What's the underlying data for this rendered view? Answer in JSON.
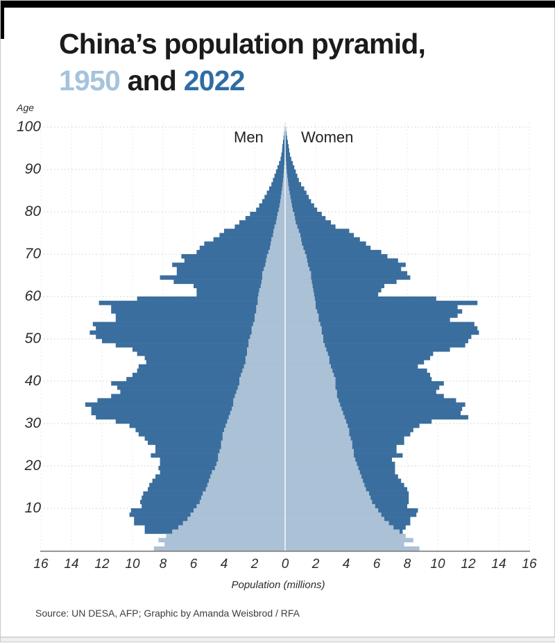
{
  "header": {
    "title_line1": "China’s population pyramid,",
    "year_old": "1950",
    "conjunction": "and",
    "year_new": "2022"
  },
  "labels": {
    "men": "Men",
    "women": "Women",
    "age_axis": "Age",
    "x_axis": "Population (millions)"
  },
  "source_line": "Source: UN DESA, AFP; Graphic by Amanda Weisbrod / RFA",
  "colors": {
    "bar_2022": "#3a6e9e",
    "bar_1950": "#abc1d6",
    "title_year_old": "#a5c3dc",
    "title_year_new": "#2e6da4",
    "grid_horizontal": "#c8c8c8",
    "grid_vertical": "#e4e4e4",
    "axis_line": "#7a7a7a",
    "center_divider": "#ffffff"
  },
  "chart_data": {
    "type": "bar",
    "subtype": "population_pyramid",
    "title": "China's population pyramid, 1950 and 2022",
    "xlabel": "Population (millions)",
    "ylabel": "Age",
    "left_label": "Men",
    "right_label": "Women",
    "x_tick_labels": [
      "16",
      "14",
      "12",
      "10",
      "8",
      "6",
      "4",
      "2",
      "0",
      "2",
      "4",
      "6",
      "8",
      "10",
      "12",
      "14",
      "16"
    ],
    "x_max_millions_each_side": 16,
    "age_tick_labels": [
      "100",
      "90",
      "80",
      "70",
      "60",
      "50",
      "40",
      "30",
      "20",
      "10"
    ],
    "age_ticks": [
      100,
      90,
      80,
      70,
      60,
      50,
      40,
      30,
      20,
      10
    ],
    "ages_min": 0,
    "ages_max": 100,
    "grid": true,
    "legend_position": "in-title",
    "years": [
      {
        "label": "1950",
        "color": "#abc1d6"
      },
      {
        "label": "2022",
        "color": "#3a6e9e"
      }
    ],
    "series": [
      {
        "name": "Men 2022",
        "year": "2022",
        "side": "left",
        "color": "#3a6e9e",
        "values": [
          4.8,
          5.2,
          6.0,
          7.6,
          9.2,
          9.2,
          9.9,
          9.9,
          10.2,
          10.1,
          9.4,
          9.5,
          9.4,
          9.3,
          9.0,
          8.9,
          8.7,
          8.5,
          8.2,
          8.3,
          8.2,
          8.2,
          8.8,
          8.5,
          8.5,
          9.0,
          9.2,
          9.6,
          9.8,
          10.2,
          11.1,
          12.4,
          12.7,
          12.7,
          13.1,
          12.3,
          11.4,
          10.8,
          11.0,
          11.4,
          10.4,
          10.0,
          9.7,
          9.6,
          9.1,
          9.2,
          9.7,
          10.0,
          11.1,
          12.0,
          12.4,
          12.8,
          12.4,
          12.6,
          11.1,
          11.1,
          11.4,
          11.4,
          12.2,
          9.7,
          5.8,
          5.8,
          6.0,
          7.3,
          8.2,
          7.1,
          7.1,
          7.4,
          6.6,
          6.8,
          5.8,
          5.6,
          5.3,
          4.7,
          4.3,
          4.0,
          3.3,
          3.0,
          2.6,
          2.3,
          1.9,
          1.7,
          1.5,
          1.35,
          1.2,
          1.05,
          0.9,
          0.8,
          0.7,
          0.6,
          0.5,
          0.4,
          0.3,
          0.25,
          0.2,
          0.18,
          0.14,
          0.1,
          0.07,
          0.05,
          0.03
        ]
      },
      {
        "name": "Women 2022",
        "year": "2022",
        "side": "right",
        "color": "#3a6e9e",
        "values": [
          4.4,
          4.8,
          5.5,
          7.3,
          7.7,
          7.9,
          8.2,
          8.2,
          8.6,
          8.7,
          8.0,
          8.1,
          8.1,
          8.1,
          8.0,
          7.8,
          7.6,
          7.4,
          7.2,
          7.2,
          7.2,
          7.0,
          7.7,
          7.3,
          7.3,
          7.8,
          7.8,
          8.2,
          8.4,
          8.8,
          9.6,
          12.0,
          11.5,
          11.6,
          11.8,
          11.2,
          10.4,
          9.9,
          10.1,
          10.4,
          9.6,
          9.5,
          9.3,
          8.7,
          9.1,
          9.5,
          9.7,
          10.8,
          11.8,
          12.0,
          12.2,
          12.7,
          12.6,
          12.4,
          10.8,
          11.3,
          11.6,
          11.3,
          12.6,
          9.9,
          6.1,
          6.3,
          6.5,
          7.3,
          8.2,
          8.0,
          7.6,
          7.9,
          7.4,
          6.7,
          6.3,
          5.6,
          5.3,
          4.9,
          4.5,
          4.2,
          3.3,
          3.0,
          2.65,
          2.4,
          2.1,
          1.9,
          1.7,
          1.55,
          1.4,
          1.25,
          1.05,
          0.9,
          0.8,
          0.7,
          0.6,
          0.5,
          0.4,
          0.32,
          0.27,
          0.23,
          0.18,
          0.13,
          0.09,
          0.06,
          0.04
        ]
      },
      {
        "name": "Men 1950",
        "year": "1950",
        "side": "left",
        "color": "#abc1d6",
        "values": [
          8.6,
          7.9,
          8.3,
          7.8,
          7.4,
          7.0,
          6.7,
          6.4,
          6.2,
          6.0,
          5.8,
          5.6,
          5.5,
          5.4,
          5.2,
          5.1,
          5.0,
          4.9,
          4.8,
          4.6,
          4.5,
          4.4,
          4.4,
          4.3,
          4.2,
          4.2,
          4.1,
          4.1,
          4.0,
          3.9,
          3.8,
          3.7,
          3.6,
          3.5,
          3.4,
          3.4,
          3.3,
          3.2,
          3.1,
          3.0,
          3.0,
          2.9,
          2.8,
          2.7,
          2.6,
          2.6,
          2.5,
          2.5,
          2.4,
          2.4,
          2.3,
          2.2,
          2.2,
          2.1,
          2.0,
          2.0,
          1.9,
          1.9,
          1.8,
          1.8,
          1.75,
          1.7,
          1.6,
          1.55,
          1.5,
          1.5,
          1.4,
          1.3,
          1.25,
          1.2,
          1.1,
          1.0,
          0.95,
          0.9,
          0.8,
          0.76,
          0.7,
          0.6,
          0.55,
          0.5,
          0.42,
          0.37,
          0.32,
          0.28,
          0.24,
          0.2,
          0.17,
          0.14,
          0.11,
          0.09,
          0.07,
          0.05,
          0.04,
          0.03,
          0.02,
          0.016,
          0.012,
          0.008,
          0.005,
          0.003,
          0.002
        ]
      },
      {
        "name": "Women 1950",
        "year": "1950",
        "side": "right",
        "color": "#abc1d6",
        "values": [
          8.8,
          7.8,
          8.4,
          7.9,
          7.5,
          7.1,
          6.8,
          6.5,
          6.3,
          6.1,
          5.9,
          5.7,
          5.6,
          5.5,
          5.3,
          5.2,
          5.1,
          5.0,
          4.9,
          4.8,
          4.7,
          4.6,
          4.5,
          4.5,
          4.4,
          4.4,
          4.3,
          4.2,
          4.2,
          4.1,
          4.0,
          3.9,
          3.8,
          3.7,
          3.6,
          3.5,
          3.4,
          3.4,
          3.3,
          3.3,
          3.3,
          3.2,
          3.1,
          3.0,
          2.9,
          2.9,
          2.8,
          2.7,
          2.6,
          2.5,
          2.5,
          2.4,
          2.4,
          2.3,
          2.2,
          2.2,
          2.1,
          2.0,
          2.0,
          1.95,
          1.9,
          1.85,
          1.8,
          1.75,
          1.7,
          1.7,
          1.6,
          1.5,
          1.45,
          1.4,
          1.3,
          1.2,
          1.1,
          1.05,
          1.0,
          0.9,
          0.8,
          0.7,
          0.65,
          0.6,
          0.5,
          0.45,
          0.4,
          0.35,
          0.3,
          0.25,
          0.21,
          0.18,
          0.14,
          0.11,
          0.09,
          0.07,
          0.05,
          0.04,
          0.032,
          0.025,
          0.018,
          0.012,
          0.008,
          0.005,
          0.003
        ]
      }
    ]
  }
}
